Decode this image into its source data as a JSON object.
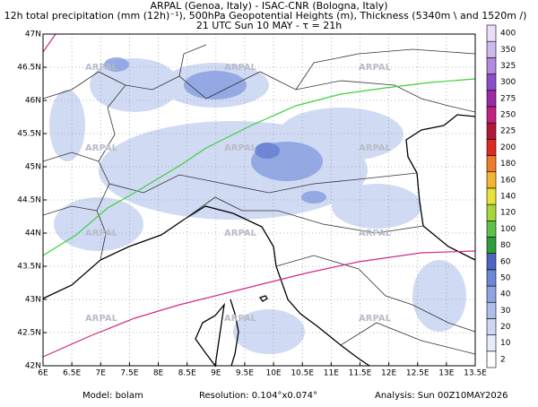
{
  "header": {
    "line1": "ARPAL (Genoa, Italy)  -  ISAC-CNR (Bologna, Italy)",
    "line2": "12h total precipitation (mm (12h)⁻¹), 500hPa Geopotential Heights (m), Thickness (5340m \\ and 1520m /)",
    "line3": "21 UTC Sun 10 MAY  -  τ = 21h"
  },
  "map": {
    "watermark": "ARPAL",
    "lon_ticks": [
      {
        "value": 6,
        "label": "6E"
      },
      {
        "value": 6.5,
        "label": "6.5E"
      },
      {
        "value": 7,
        "label": "7E"
      },
      {
        "value": 7.5,
        "label": "7.5E"
      },
      {
        "value": 8,
        "label": "8E"
      },
      {
        "value": 8.5,
        "label": "8.5E"
      },
      {
        "value": 9,
        "label": "9E"
      },
      {
        "value": 9.5,
        "label": "9.5E"
      },
      {
        "value": 10,
        "label": "10E"
      },
      {
        "value": 10.5,
        "label": "10.5E"
      },
      {
        "value": 11,
        "label": "11E"
      },
      {
        "value": 11.5,
        "label": "11.5E"
      },
      {
        "value": 12,
        "label": "12E"
      },
      {
        "value": 12.5,
        "label": "12.5E"
      },
      {
        "value": 13,
        "label": "13E"
      },
      {
        "value": 13.5,
        "label": "13.5E"
      }
    ],
    "lat_ticks": [
      {
        "value": 42,
        "label": "42N"
      },
      {
        "value": 42.5,
        "label": "42.5N"
      },
      {
        "value": 43,
        "label": "43N"
      },
      {
        "value": 43.5,
        "label": "43.5N"
      },
      {
        "value": 44,
        "label": "44N"
      },
      {
        "value": 44.5,
        "label": "44.5N"
      },
      {
        "value": 45,
        "label": "45N"
      },
      {
        "value": 45.5,
        "label": "45.5N"
      },
      {
        "value": 46,
        "label": "46N"
      },
      {
        "value": 46.5,
        "label": "46.5N"
      },
      {
        "value": 47,
        "label": "47N"
      }
    ]
  },
  "colorbar": {
    "levels": [
      2,
      10,
      20,
      30,
      40,
      50,
      60,
      80,
      100,
      120,
      140,
      160,
      180,
      200,
      225,
      250,
      275,
      300,
      325,
      350,
      400
    ],
    "colors": [
      "#ffffff",
      "#e8ecfa",
      "#cdd7f3",
      "#aebfec",
      "#8fa3e0",
      "#6f86d4",
      "#4e63c2",
      "#2f9e3a",
      "#5fc04a",
      "#a6d63a",
      "#e7e23a",
      "#f2b630",
      "#ee7a2a",
      "#dd2b22",
      "#b3163a",
      "#c0247f",
      "#9d2aa5",
      "#8a4fc8",
      "#b28ae0",
      "#cfb8ec",
      "#e9def6"
    ]
  },
  "footer": {
    "model": "Model: bolam",
    "resolution": "Resolution: 0.104°x0.074°",
    "analysis": "Analysis: Sun 00Z10MAY2026"
  }
}
